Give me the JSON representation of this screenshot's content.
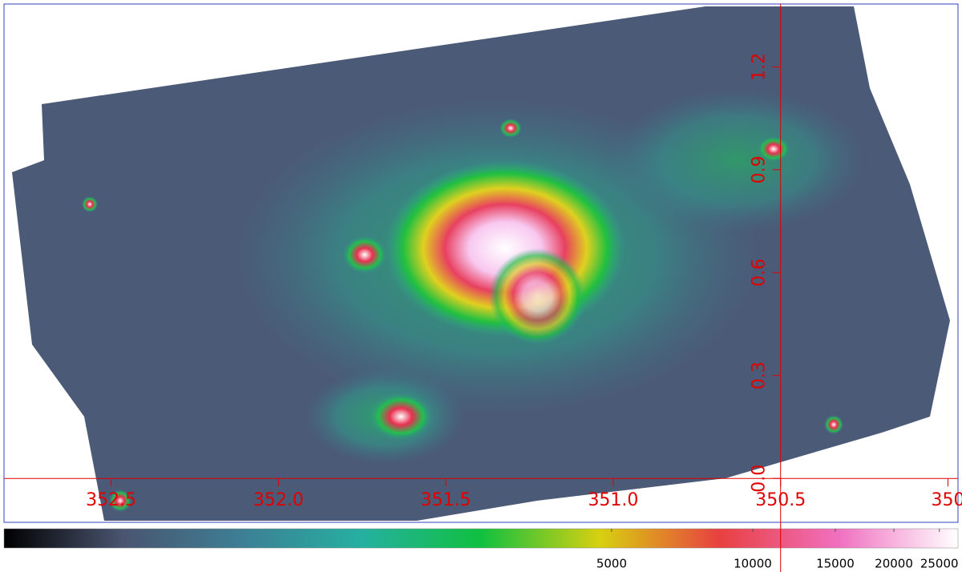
{
  "chart_data": {
    "type": "image",
    "axis_color": "#e00000",
    "xlim": [
      352.82,
      349.97
    ],
    "ylim": [
      -0.128,
      1.383
    ],
    "xticks": [
      352.5,
      {
        "value": 352.0,
        "label": "352.0"
      },
      351.5,
      {
        "value": 351.0,
        "label": "351.0"
      },
      350.5,
      350
    ],
    "yticks": [
      {
        "value": 0.0,
        "label": "0.0"
      },
      0.3,
      0.6,
      0.9,
      1.2
    ],
    "crosshair": [
      350.5,
      0.0
    ],
    "colorbar": {
      "scale": "log",
      "lim": [
        253,
        27400
      ],
      "ticks": [
        5000,
        10000,
        15000,
        20000,
        25000
      ],
      "colors": [
        "#000000",
        "#4a5570",
        "#3d7f95",
        "#25b0a0",
        "#10c040",
        "#d8d010",
        "#e84040",
        "#f070c0",
        "#ffffff"
      ]
    }
  }
}
